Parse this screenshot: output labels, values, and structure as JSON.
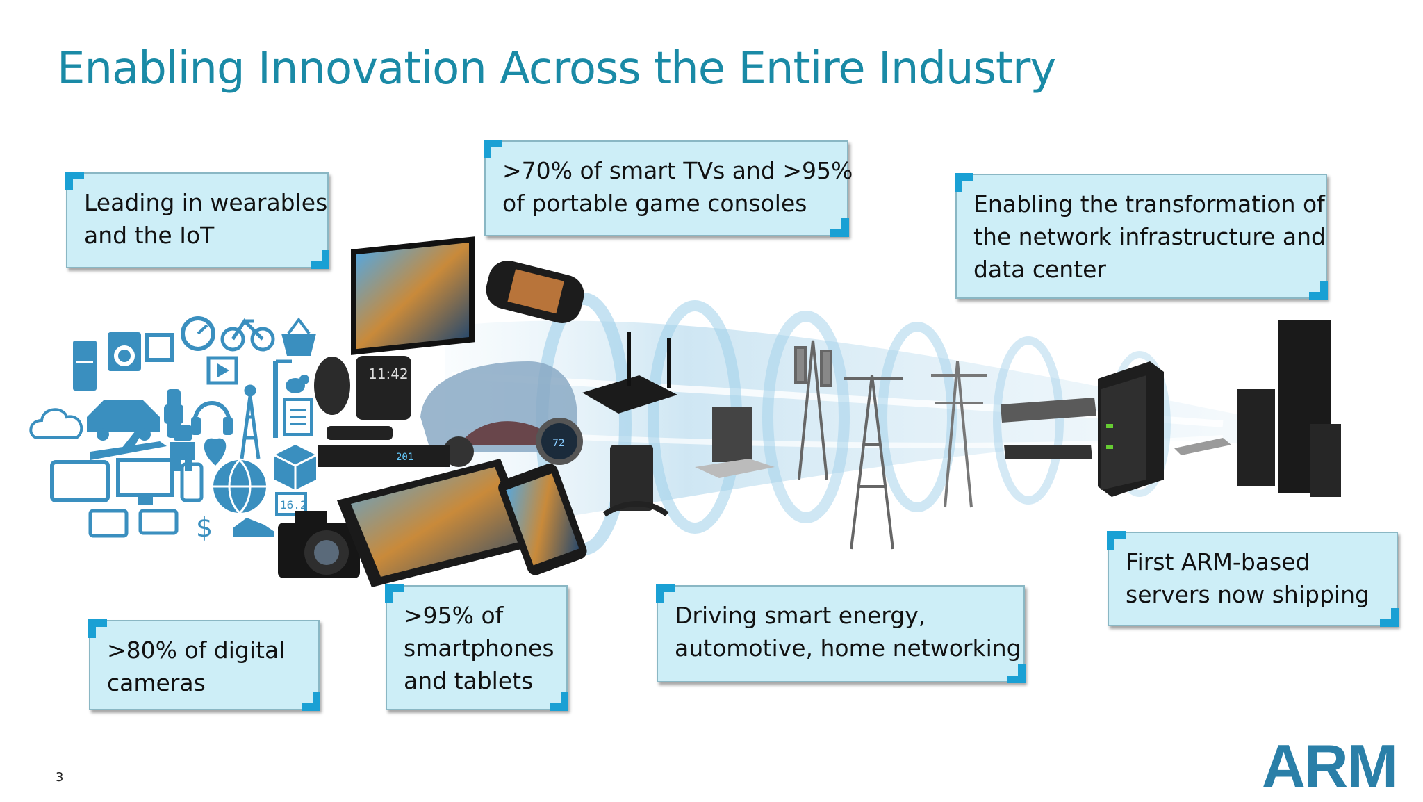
{
  "title": "Enabling Innovation Across the Entire Industry",
  "callouts": {
    "wearables": [
      "Leading in wearables",
      "and the IoT"
    ],
    "tvs": [
      ">70% of smart TVs and >95%",
      "of portable game consoles"
    ],
    "network": [
      "Enabling the transformation of",
      "the network infrastructure and",
      "data center"
    ],
    "cameras": [
      ">80% of digital",
      "cameras"
    ],
    "smartphones": [
      ">95% of",
      "smartphones",
      "and tablets"
    ],
    "energy": [
      "Driving smart energy,",
      "automotive, home networking"
    ],
    "servers": [
      "First ARM-based",
      "servers now shipping"
    ]
  },
  "device_readouts": {
    "watch_time": "11:42",
    "set_top_box": "201",
    "thermostat": "72",
    "meter": "16.2",
    "dollar": "$"
  },
  "page_number": "3",
  "logo_text": "ARM",
  "colors": {
    "title": "#1a8aa6",
    "callout_fill": "#cdeef7",
    "callout_corner": "#1aa0d4",
    "iot_icons": "#3a8fbf",
    "logo": "#2a7fa8"
  },
  "icons": [
    "fridge-icon",
    "washing-machine-icon",
    "frame-icon",
    "gauge-icon",
    "bicycle-icon",
    "basket-icon",
    "car-icon",
    "watch-icon",
    "headphones-icon",
    "play-icon",
    "streetlight-icon",
    "tower-icon",
    "bird-icon",
    "document-icon",
    "cloud-icon",
    "airplane-icon",
    "robot-icon",
    "heart-icon",
    "tablet-icon",
    "monitor-icon",
    "phone-icon",
    "globe-icon",
    "box-icon",
    "meter-icon",
    "camera-icon",
    "dollar-icon",
    "shoe-icon"
  ]
}
